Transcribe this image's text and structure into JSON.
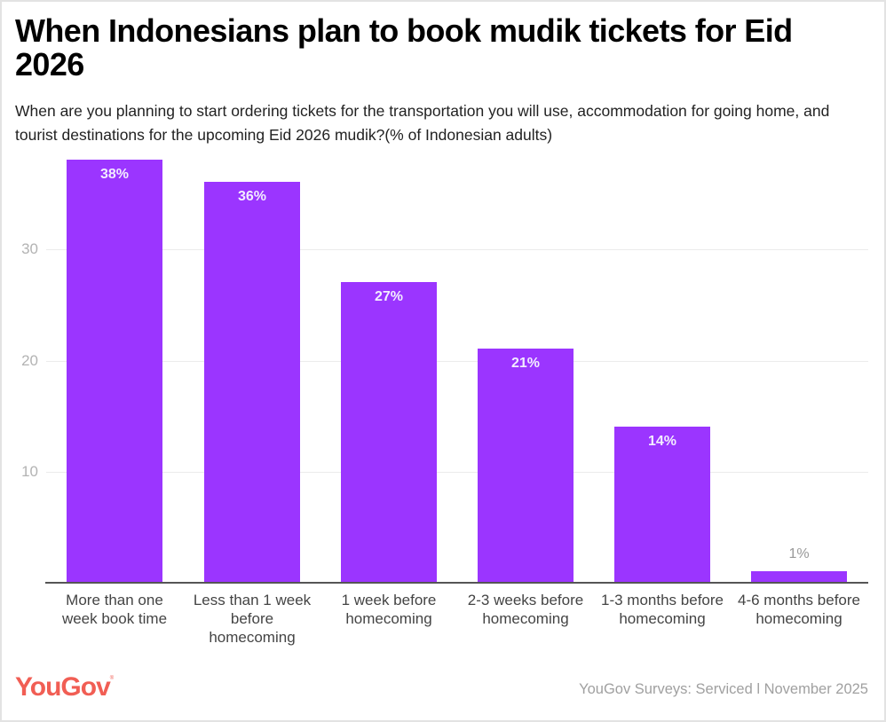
{
  "title": "When Indonesians plan to book mudik tickets for Eid 2026",
  "subtitle": "When are you planning to start ordering tickets for the transportation you will use, accommodation for going home, and tourist destinations for the upcoming Eid 2026 mudik?(% of Indonesian adults)",
  "footer": {
    "logo": "YouGov",
    "source": "YouGov Surveys: Serviced l November 2025"
  },
  "colors": {
    "bar": "#9b35ff",
    "logo": "#f15e54",
    "gridline": "#ececec",
    "axis_text": "#b3b3b3"
  },
  "yaxis": {
    "ticks": [
      "10",
      "20",
      "30"
    ]
  },
  "bars": [
    {
      "category": "More than one week book time",
      "value": 38,
      "label": "38%"
    },
    {
      "category": "Less than 1 week before homecoming",
      "value": 36,
      "label": "36%"
    },
    {
      "category": "1 week before homecoming",
      "value": 27,
      "label": "27%"
    },
    {
      "category": "2-3 weeks before homecoming",
      "value": 21,
      "label": "21%"
    },
    {
      "category": "1-3 months before homecoming",
      "value": 14,
      "label": "14%"
    },
    {
      "category": "4-6 months before homecoming",
      "value": 1,
      "label": "1%"
    }
  ],
  "chart_data": {
    "type": "bar",
    "title": "When Indonesians plan to book mudik tickets for Eid 2026",
    "subtitle": "When are you planning to start ordering tickets for the transportation you will use, accommodation for going home, and tourist destinations for the upcoming Eid 2026 mudik?(% of Indonesian adults)",
    "categories": [
      "More than one week book time",
      "Less than 1 week before homecoming",
      "1 week before homecoming",
      "2-3 weeks before homecoming",
      "1-3 months before homecoming",
      "4-6 months before homecoming"
    ],
    "values": [
      38,
      36,
      27,
      21,
      14,
      1
    ],
    "data_labels": [
      "38%",
      "36%",
      "27%",
      "21%",
      "14%",
      "1%"
    ],
    "xlabel": "",
    "ylabel": "",
    "ylim": [
      0,
      40
    ],
    "yticks": [
      10,
      20,
      30
    ],
    "grid": true,
    "legend": null,
    "source": "YouGov Surveys: Serviced l November 2025"
  }
}
